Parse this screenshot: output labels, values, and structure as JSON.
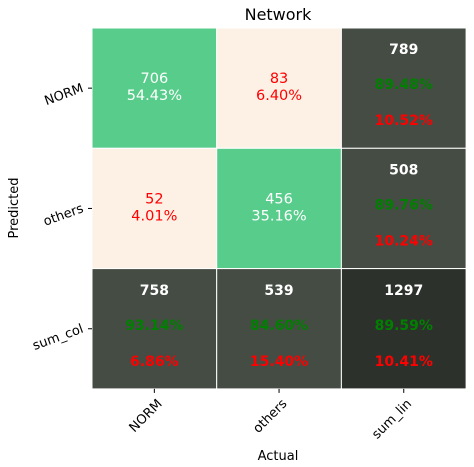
{
  "chart_data": {
    "type": "heatmap",
    "title": "Network",
    "xlabel": "Actual",
    "ylabel": "Predicted",
    "x_tick_labels": [
      "NORM",
      "others",
      "sum_lin"
    ],
    "y_tick_labels": [
      "NORM",
      "others",
      "sum_col"
    ],
    "grid": false,
    "cells": [
      [
        {
          "count": "706",
          "pct": "54.43%",
          "kind": "diag"
        },
        {
          "count": "83",
          "pct": "6.40%",
          "kind": "off"
        },
        {
          "count": "789",
          "correct": "89.48%",
          "error": "10.52%",
          "kind": "sum"
        }
      ],
      [
        {
          "count": "52",
          "pct": "4.01%",
          "kind": "off"
        },
        {
          "count": "456",
          "pct": "35.16%",
          "kind": "diag"
        },
        {
          "count": "508",
          "correct": "89.76%",
          "error": "10.24%",
          "kind": "sum"
        }
      ],
      [
        {
          "count": "758",
          "correct": "93.14%",
          "error": "6.86%",
          "kind": "sum"
        },
        {
          "count": "539",
          "correct": "84.60%",
          "error": "15.40%",
          "kind": "sum"
        },
        {
          "count": "1297",
          "correct": "89.59%",
          "error": "10.41%",
          "kind": "total"
        }
      ]
    ]
  },
  "colors": {
    "diag": "#58cd8b",
    "off": "#fdf1e6",
    "sum": "#444c44",
    "total": "#2c322b",
    "diag_text": "#ffffff",
    "off_text": "#ff0000",
    "sum_count_text": "#ffffff",
    "correct_text": "#007f00",
    "error_text": "#ff0000",
    "axis": "#000000"
  }
}
